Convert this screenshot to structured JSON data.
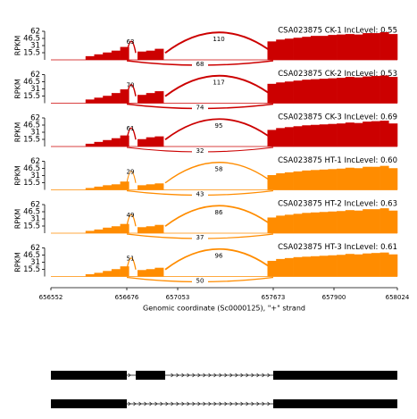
{
  "chart_data": {
    "type": "sashimi",
    "ylabel": "RPKM",
    "ylim": [
      0,
      62
    ],
    "yticks": [
      15.5,
      31,
      46.5,
      62
    ],
    "xlabel": "Genomic coordinate (Sc0000125), \"+\" strand",
    "xticks": [
      656552,
      656676,
      657053,
      657673,
      657900,
      658024
    ],
    "tracks": [
      {
        "title": "CSA023875 CK-1 IncLevel: 0.55",
        "color": "#cc0000",
        "junctions": [
          63,
          110,
          68
        ],
        "coverage": [
          0,
          0,
          0,
          0,
          8,
          12,
          16,
          20,
          28,
          0,
          18,
          20,
          24,
          0,
          0,
          0,
          0,
          0,
          0,
          0,
          0,
          0,
          0,
          0,
          0,
          40,
          44,
          46,
          48,
          50,
          52,
          52,
          54,
          55,
          56,
          55,
          58,
          58,
          60,
          56
        ]
      },
      {
        "title": "CSA023875 CK-2 IncLevel: 0.53",
        "color": "#cc0000",
        "junctions": [
          70,
          117,
          74
        ],
        "coverage": [
          0,
          0,
          0,
          0,
          8,
          12,
          16,
          22,
          30,
          0,
          18,
          22,
          26,
          0,
          0,
          0,
          0,
          0,
          0,
          0,
          0,
          0,
          0,
          0,
          0,
          42,
          45,
          47,
          49,
          51,
          52,
          53,
          54,
          55,
          57,
          56,
          58,
          59,
          60,
          57
        ]
      },
      {
        "title": "CSA023875 CK-3 IncLevel: 0.69",
        "color": "#cc0000",
        "junctions": [
          61,
          95,
          32
        ],
        "coverage": [
          0,
          0,
          0,
          0,
          6,
          10,
          14,
          18,
          24,
          0,
          16,
          20,
          22,
          0,
          0,
          0,
          0,
          0,
          0,
          0,
          0,
          0,
          0,
          0,
          0,
          36,
          40,
          42,
          44,
          46,
          47,
          48,
          49,
          50,
          52,
          51,
          54,
          55,
          56,
          50
        ]
      },
      {
        "title": "CSA023875 HT-1 IncLevel: 0.60",
        "color": "#ff8c00",
        "junctions": [
          29,
          58,
          43
        ],
        "coverage": [
          0,
          0,
          0,
          0,
          4,
          7,
          10,
          12,
          18,
          0,
          10,
          12,
          14,
          0,
          0,
          0,
          0,
          0,
          0,
          0,
          0,
          0,
          0,
          0,
          0,
          32,
          36,
          38,
          40,
          42,
          43,
          44,
          45,
          46,
          48,
          47,
          50,
          50,
          52,
          47
        ]
      },
      {
        "title": "CSA023875 HT-2 IncLevel: 0.63",
        "color": "#ff8c00",
        "junctions": [
          49,
          86,
          37
        ],
        "coverage": [
          0,
          0,
          0,
          0,
          5,
          8,
          12,
          15,
          20,
          0,
          13,
          15,
          18,
          0,
          0,
          0,
          0,
          0,
          0,
          0,
          0,
          0,
          0,
          0,
          0,
          34,
          38,
          40,
          42,
          44,
          45,
          46,
          47,
          48,
          50,
          49,
          52,
          52,
          54,
          49
        ]
      },
      {
        "title": "CSA023875 HT-3 IncLevel: 0.61",
        "color": "#ff8c00",
        "junctions": [
          51,
          96,
          50
        ],
        "coverage": [
          0,
          0,
          0,
          0,
          5,
          8,
          12,
          16,
          22,
          0,
          14,
          16,
          19,
          0,
          0,
          0,
          0,
          0,
          0,
          0,
          0,
          0,
          0,
          0,
          0,
          34,
          38,
          40,
          42,
          43,
          44,
          45,
          46,
          47,
          49,
          48,
          50,
          51,
          52,
          48
        ]
      }
    ]
  }
}
